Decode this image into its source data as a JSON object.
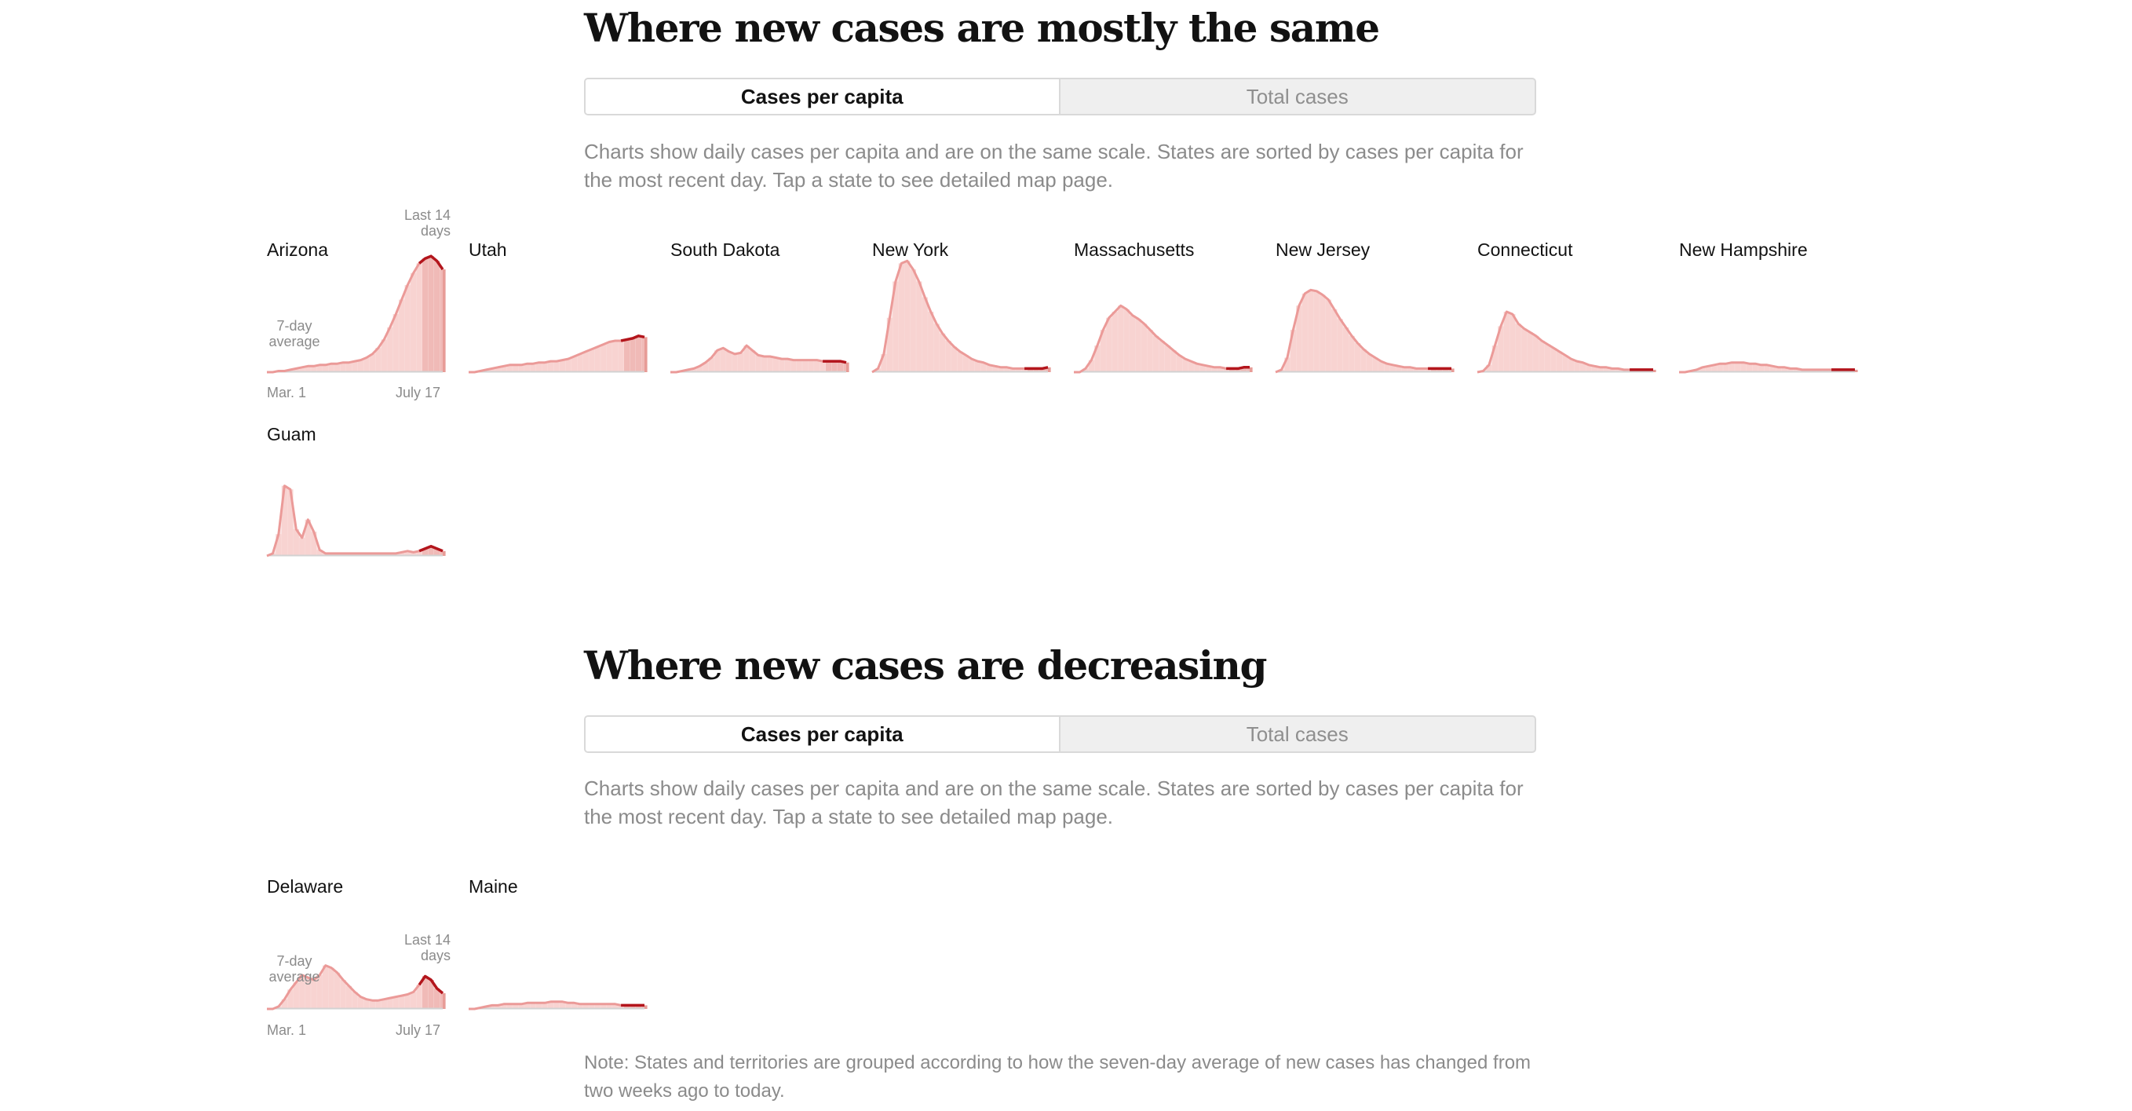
{
  "sections": [
    {
      "title": "Where new cases are mostly the same",
      "toggle": {
        "options": [
          "Cases per capita",
          "Total cases"
        ],
        "selected": "Cases per capita"
      },
      "description": "Charts show daily cases per capita and are on the same scale. States are sorted by cases per capita for the most recent day. Tap a state to see detailed map page."
    },
    {
      "title": "Where new cases are decreasing",
      "toggle": {
        "options": [
          "Cases per capita",
          "Total cases"
        ],
        "selected": "Cases per capita"
      },
      "description": "Charts show daily cases per capita and are on the same scale. States are sorted by cases per capita for the most recent day. Tap a state to see detailed map page."
    }
  ],
  "annotations": {
    "seven_day": [
      "7-day",
      "average"
    ],
    "last_14": [
      "Last 14",
      "days"
    ],
    "x_start": "Mar. 1",
    "x_end": "July 17"
  },
  "note": "Note: States and territories are grouped according to how the seven-day average of new cases has changed from two weeks ago to today.",
  "colors": {
    "bar": "#f8d3d1",
    "line": "#eb9a98",
    "recent_bar": "#e79c97",
    "recent_line": "#b3151c",
    "baseline": "#d2d2d2"
  },
  "chart_data": [
    {
      "type": "area",
      "group": "Where new cases are mostly the same",
      "x_range": [
        "Mar. 1",
        "July 17"
      ],
      "ylim": [
        0,
        1
      ],
      "series": [
        {
          "name": "Arizona",
          "values": [
            0.0,
            0.0,
            0.01,
            0.01,
            0.02,
            0.03,
            0.04,
            0.05,
            0.05,
            0.06,
            0.06,
            0.07,
            0.07,
            0.08,
            0.08,
            0.09,
            0.1,
            0.12,
            0.15,
            0.2,
            0.27,
            0.37,
            0.48,
            0.6,
            0.72,
            0.82,
            0.9,
            0.94,
            0.96,
            0.92,
            0.85
          ]
        },
        {
          "name": "Utah",
          "values": [
            0.0,
            0.0,
            0.01,
            0.02,
            0.03,
            0.04,
            0.05,
            0.06,
            0.06,
            0.06,
            0.07,
            0.07,
            0.08,
            0.08,
            0.09,
            0.09,
            0.1,
            0.11,
            0.13,
            0.15,
            0.17,
            0.19,
            0.21,
            0.23,
            0.25,
            0.26,
            0.26,
            0.27,
            0.28,
            0.3,
            0.29
          ]
        },
        {
          "name": "South Dakota",
          "values": [
            0.0,
            0.0,
            0.01,
            0.02,
            0.03,
            0.05,
            0.08,
            0.12,
            0.18,
            0.2,
            0.17,
            0.15,
            0.16,
            0.22,
            0.18,
            0.14,
            0.13,
            0.13,
            0.12,
            0.11,
            0.11,
            0.1,
            0.1,
            0.1,
            0.1,
            0.1,
            0.09,
            0.09,
            0.09,
            0.09,
            0.08
          ]
        },
        {
          "name": "New York",
          "values": [
            0.0,
            0.03,
            0.15,
            0.45,
            0.75,
            0.9,
            0.92,
            0.85,
            0.75,
            0.62,
            0.5,
            0.4,
            0.32,
            0.26,
            0.21,
            0.17,
            0.14,
            0.11,
            0.09,
            0.08,
            0.06,
            0.05,
            0.04,
            0.04,
            0.03,
            0.03,
            0.03,
            0.03,
            0.03,
            0.03,
            0.04
          ]
        },
        {
          "name": "Massachusetts",
          "values": [
            0.0,
            0.0,
            0.03,
            0.1,
            0.22,
            0.35,
            0.45,
            0.5,
            0.55,
            0.52,
            0.47,
            0.44,
            0.4,
            0.35,
            0.3,
            0.26,
            0.22,
            0.18,
            0.14,
            0.11,
            0.09,
            0.07,
            0.06,
            0.05,
            0.04,
            0.04,
            0.03,
            0.03,
            0.03,
            0.04,
            0.04
          ]
        },
        {
          "name": "New Jersey",
          "values": [
            0.0,
            0.02,
            0.12,
            0.35,
            0.55,
            0.65,
            0.68,
            0.67,
            0.64,
            0.6,
            0.52,
            0.44,
            0.37,
            0.3,
            0.24,
            0.19,
            0.15,
            0.12,
            0.09,
            0.07,
            0.06,
            0.05,
            0.04,
            0.04,
            0.03,
            0.03,
            0.03,
            0.03,
            0.03,
            0.03,
            0.03
          ]
        },
        {
          "name": "Connecticut",
          "values": [
            0.0,
            0.01,
            0.06,
            0.22,
            0.38,
            0.5,
            0.48,
            0.4,
            0.36,
            0.33,
            0.3,
            0.26,
            0.23,
            0.2,
            0.17,
            0.14,
            0.11,
            0.09,
            0.08,
            0.06,
            0.05,
            0.04,
            0.04,
            0.03,
            0.03,
            0.02,
            0.02,
            0.02,
            0.02,
            0.02,
            0.02
          ]
        },
        {
          "name": "New Hampshire",
          "values": [
            0.0,
            0.0,
            0.01,
            0.02,
            0.04,
            0.05,
            0.06,
            0.07,
            0.07,
            0.08,
            0.08,
            0.08,
            0.07,
            0.07,
            0.06,
            0.06,
            0.05,
            0.04,
            0.04,
            0.03,
            0.03,
            0.02,
            0.02,
            0.02,
            0.02,
            0.02,
            0.02,
            0.02,
            0.02,
            0.02,
            0.02
          ]
        },
        {
          "name": "Guam",
          "values": [
            0.0,
            0.02,
            0.18,
            0.58,
            0.55,
            0.22,
            0.15,
            0.3,
            0.2,
            0.05,
            0.02,
            0.02,
            0.02,
            0.02,
            0.02,
            0.02,
            0.02,
            0.02,
            0.02,
            0.02,
            0.02,
            0.02,
            0.02,
            0.03,
            0.04,
            0.03,
            0.04,
            0.06,
            0.08,
            0.06,
            0.04
          ]
        }
      ]
    },
    {
      "type": "area",
      "group": "Where new cases are decreasing",
      "x_range": [
        "Mar. 1",
        "July 17"
      ],
      "ylim": [
        0,
        1
      ],
      "series": [
        {
          "name": "Delaware",
          "values": [
            0.0,
            0.0,
            0.02,
            0.08,
            0.16,
            0.22,
            0.28,
            0.26,
            0.24,
            0.28,
            0.36,
            0.34,
            0.3,
            0.24,
            0.19,
            0.14,
            0.1,
            0.08,
            0.07,
            0.07,
            0.08,
            0.09,
            0.1,
            0.11,
            0.12,
            0.14,
            0.2,
            0.27,
            0.24,
            0.17,
            0.13
          ]
        },
        {
          "name": "Maine",
          "values": [
            0.0,
            0.0,
            0.01,
            0.02,
            0.03,
            0.03,
            0.04,
            0.04,
            0.04,
            0.04,
            0.05,
            0.05,
            0.05,
            0.05,
            0.06,
            0.06,
            0.06,
            0.05,
            0.05,
            0.04,
            0.04,
            0.04,
            0.04,
            0.04,
            0.04,
            0.04,
            0.03,
            0.03,
            0.03,
            0.03,
            0.03
          ]
        }
      ]
    }
  ]
}
